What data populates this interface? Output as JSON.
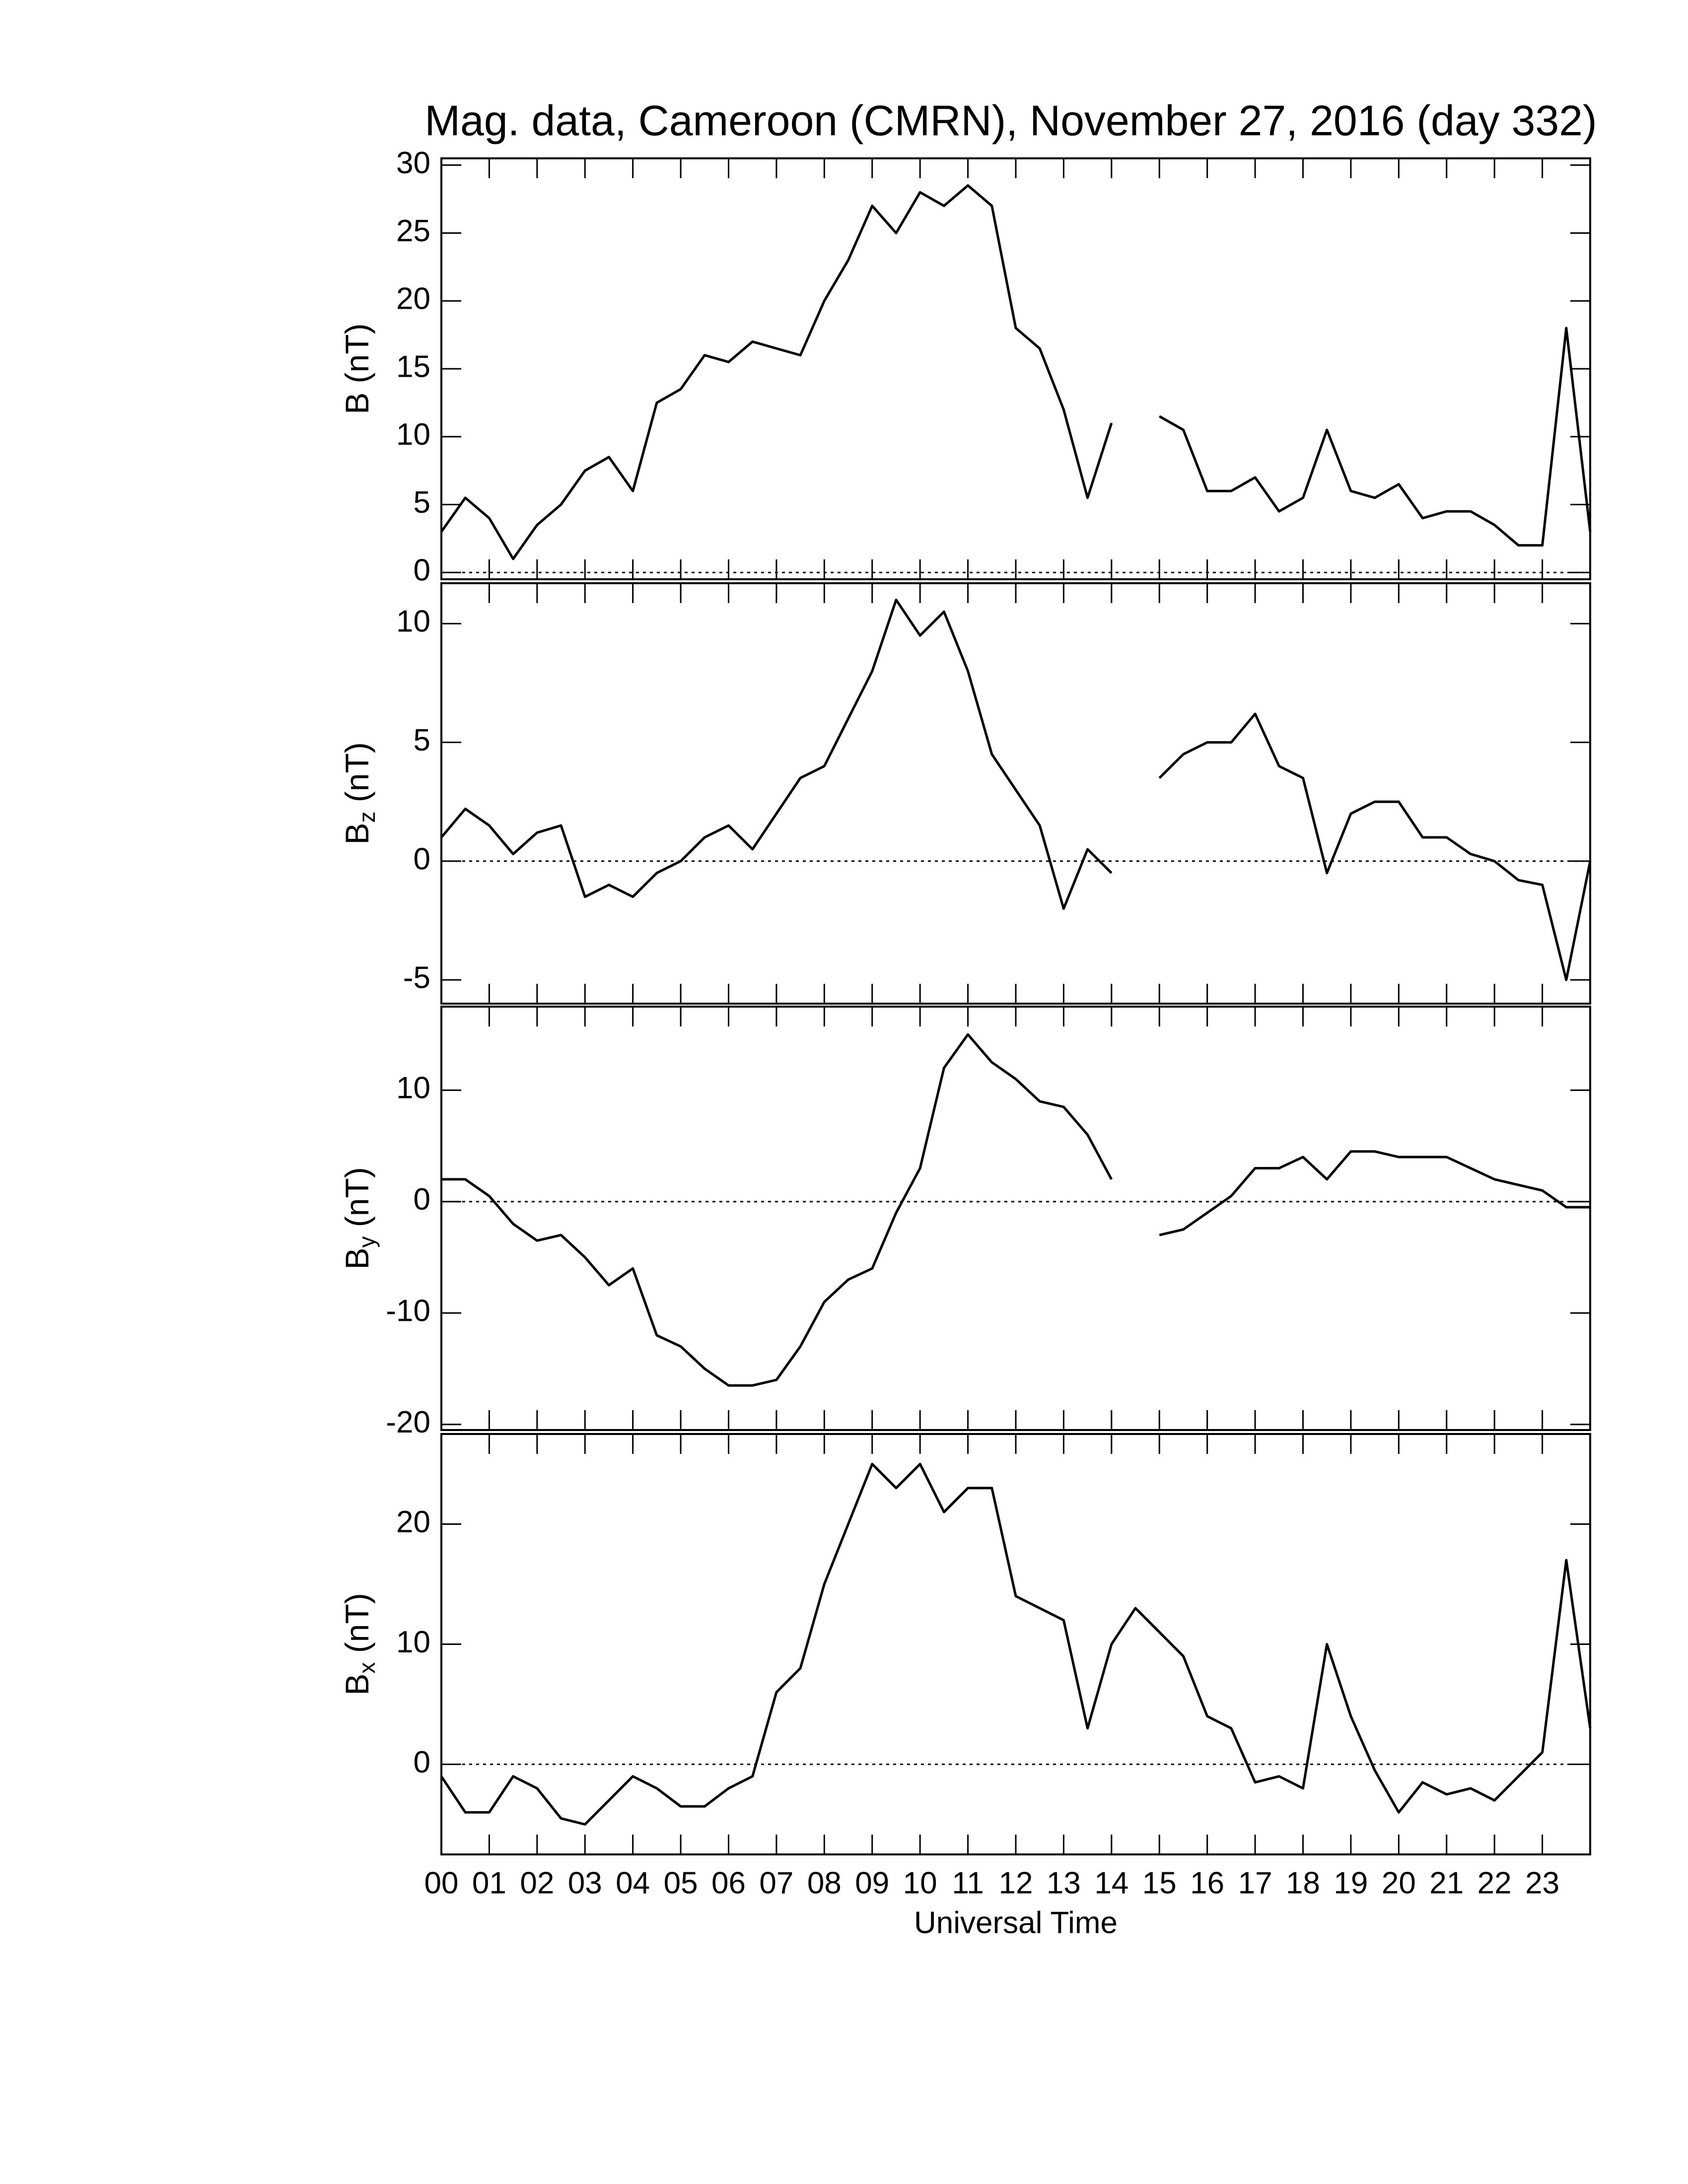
{
  "chart_data": [
    {
      "type": "line",
      "title": "Mag. data, Cameroon (CMRN), November 27, 2016 (day 332)",
      "ylabel": {
        "text": "B (nT)"
      },
      "x": [
        0,
        0.5,
        1,
        1.5,
        2,
        2.5,
        3,
        3.5,
        4,
        4.5,
        5,
        5.5,
        6,
        6.5,
        7,
        7.5,
        8,
        8.5,
        9,
        9.5,
        10,
        10.5,
        11,
        11.5,
        12,
        12.5,
        13,
        13.5,
        14,
        14.5,
        15,
        15.5,
        16,
        16.5,
        17,
        17.5,
        18,
        18.5,
        19,
        19.5,
        20,
        20.5,
        21,
        21.5,
        22,
        22.5,
        23,
        23.5,
        24
      ],
      "values": [
        3,
        5.5,
        4,
        1,
        3.5,
        5,
        7.5,
        8.5,
        6,
        12.5,
        13.5,
        16,
        15.5,
        17,
        16.5,
        16,
        20,
        23,
        27,
        25,
        28,
        27,
        28.5,
        27,
        18,
        16.5,
        12,
        5.5,
        11,
        null,
        11.5,
        10.5,
        6,
        6,
        7,
        4.5,
        5.5,
        10.5,
        6,
        5.5,
        6.5,
        4,
        4.5,
        4.5,
        3.5,
        2,
        2,
        18,
        3
      ],
      "color": "#000000",
      "refline": 0,
      "ylim": [
        -0.5,
        30.5
      ],
      "yticks": [
        0,
        5,
        10,
        15,
        20,
        25,
        30
      ]
    },
    {
      "type": "line",
      "ylabel": {
        "text": "B",
        "sub": "z",
        "unit": " (nT)"
      },
      "x": [
        0,
        0.5,
        1,
        1.5,
        2,
        2.5,
        3,
        3.5,
        4,
        4.5,
        5,
        5.5,
        6,
        6.5,
        7,
        7.5,
        8,
        8.5,
        9,
        9.5,
        10,
        10.5,
        11,
        11.5,
        12,
        12.5,
        13,
        13.5,
        14,
        14.5,
        15,
        15.5,
        16,
        16.5,
        17,
        17.5,
        18,
        18.5,
        19,
        19.5,
        20,
        20.5,
        21,
        21.5,
        22,
        22.5,
        23,
        23.5,
        24
      ],
      "values": [
        1,
        2.2,
        1.5,
        0.3,
        1.2,
        1.5,
        -1.5,
        -1,
        -1.5,
        -0.5,
        0,
        1,
        1.5,
        0.5,
        2,
        3.5,
        4,
        6,
        8,
        11,
        9.5,
        10.5,
        8,
        4.5,
        3,
        1.5,
        -2,
        0.5,
        -0.5,
        null,
        3.5,
        4.5,
        5,
        5,
        6.2,
        4,
        3.5,
        -0.5,
        2,
        2.5,
        2.5,
        1,
        1,
        0.3,
        0,
        -0.8,
        -1,
        -5,
        0
      ],
      "color": "#000000",
      "refline": 0,
      "ylim": [
        -6,
        11.7
      ],
      "yticks": [
        -5,
        0,
        5,
        10
      ]
    },
    {
      "type": "line",
      "ylabel": {
        "text": "B",
        "sub": "y",
        "unit": " (nT)"
      },
      "x": [
        0,
        0.5,
        1,
        1.5,
        2,
        2.5,
        3,
        3.5,
        4,
        4.5,
        5,
        5.5,
        6,
        6.5,
        7,
        7.5,
        8,
        8.5,
        9,
        9.5,
        10,
        10.5,
        11,
        11.5,
        12,
        12.5,
        13,
        13.5,
        14,
        14.5,
        15,
        15.5,
        16,
        16.5,
        17,
        17.5,
        18,
        18.5,
        19,
        19.5,
        20,
        20.5,
        21,
        21.5,
        22,
        22.5,
        23,
        23.5,
        24
      ],
      "values": [
        2,
        2,
        0.5,
        -2,
        -3.5,
        -3,
        -5,
        -7.5,
        -6,
        -12,
        -13,
        -15,
        -16.5,
        -16.5,
        -16,
        -13,
        -9,
        -7,
        -6,
        -1,
        3,
        12,
        15,
        12.5,
        11,
        9,
        8.5,
        6,
        2,
        null,
        -3,
        -2.5,
        -1,
        0.5,
        3,
        3,
        4,
        2,
        4.5,
        4.5,
        4,
        4,
        4,
        3,
        2,
        1.5,
        1,
        -0.5,
        -0.5
      ],
      "color": "#000000",
      "refline": 0,
      "ylim": [
        -20.5,
        17.5
      ],
      "yticks": [
        -20,
        -10,
        0,
        10
      ]
    },
    {
      "type": "line",
      "ylabel": {
        "text": "B",
        "sub": "x",
        "unit": " (nT)"
      },
      "xlabel": "Universal Time",
      "x": [
        0,
        0.5,
        1,
        1.5,
        2,
        2.5,
        3,
        3.5,
        4,
        4.5,
        5,
        5.5,
        6,
        6.5,
        7,
        7.5,
        8,
        8.5,
        9,
        9.5,
        10,
        10.5,
        11,
        11.5,
        12,
        12.5,
        13,
        13.5,
        14,
        14.5,
        15,
        15.5,
        16,
        16.5,
        17,
        17.5,
        18,
        18.5,
        19,
        19.5,
        20,
        20.5,
        21,
        21.5,
        22,
        22.5,
        23,
        23.5,
        24
      ],
      "values": [
        -1,
        -4,
        -4,
        -1,
        -2,
        -4.5,
        -5,
        -3,
        -1,
        -2,
        -3.5,
        -3.5,
        -2,
        -1,
        6,
        8,
        15,
        20,
        25,
        23,
        25,
        21,
        23,
        23,
        14,
        13,
        12,
        3,
        10,
        13,
        11,
        9,
        4,
        3,
        -1.5,
        -1,
        -2,
        10,
        4,
        -0.5,
        -4,
        -1.5,
        -2.5,
        -2,
        -3,
        -1,
        1,
        17,
        3
      ],
      "color": "#000000",
      "refline": 0,
      "ylim": [
        -7.5,
        27.5
      ],
      "yticks": [
        0,
        10,
        20
      ],
      "xlim": [
        0,
        24
      ],
      "xticks": [
        {
          "value": 0,
          "label": "00"
        },
        {
          "value": 1,
          "label": "01"
        },
        {
          "value": 2,
          "label": "02"
        },
        {
          "value": 3,
          "label": "03"
        },
        {
          "value": 4,
          "label": "04"
        },
        {
          "value": 5,
          "label": "05"
        },
        {
          "value": 6,
          "label": "06"
        },
        {
          "value": 7,
          "label": "07"
        },
        {
          "value": 8,
          "label": "08"
        },
        {
          "value": 9,
          "label": "09"
        },
        10,
        11,
        12,
        13,
        14,
        15,
        16,
        17,
        18,
        19,
        20,
        21,
        22,
        23
      ]
    }
  ]
}
